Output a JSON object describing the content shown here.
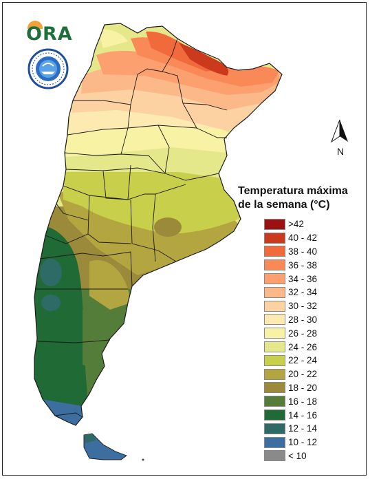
{
  "title": {
    "line1": "Temperatura máxima",
    "line2": "de la semana (°C)"
  },
  "logo": {
    "text": "ORA",
    "icon": "ora-logo"
  },
  "seal": {
    "icon": "smn-seal-icon"
  },
  "compass": {
    "label": "N",
    "icon": "north-arrow-icon"
  },
  "legend": [
    {
      "label": ">42",
      "color": "#9b1111"
    },
    {
      "label": "40 - 42",
      "color": "#cc3a1e"
    },
    {
      "label": "38 - 40",
      "color": "#f06a3c"
    },
    {
      "label": "36 - 38",
      "color": "#f98a58"
    },
    {
      "label": "34 - 36",
      "color": "#fba06e"
    },
    {
      "label": "32 - 34",
      "color": "#fbb889"
    },
    {
      "label": "30 - 32",
      "color": "#fdd2a3"
    },
    {
      "label": "28 - 30",
      "color": "#fdeab0"
    },
    {
      "label": "26 - 28",
      "color": "#f8f3a4"
    },
    {
      "label": "24 - 26",
      "color": "#e4e78a"
    },
    {
      "label": "22 - 24",
      "color": "#c8cf4a"
    },
    {
      "label": "20 - 22",
      "color": "#b3a540"
    },
    {
      "label": "18 - 20",
      "color": "#9a8a3a"
    },
    {
      "label": "16 - 18",
      "color": "#557d3a"
    },
    {
      "label": "14 - 16",
      "color": "#1f6a35"
    },
    {
      "label": "12 - 14",
      "color": "#2f6b66"
    },
    {
      "label": "10 - 12",
      "color": "#3d6ea0"
    },
    {
      "label": "< 10",
      "color": "#8a8a8a"
    }
  ]
}
